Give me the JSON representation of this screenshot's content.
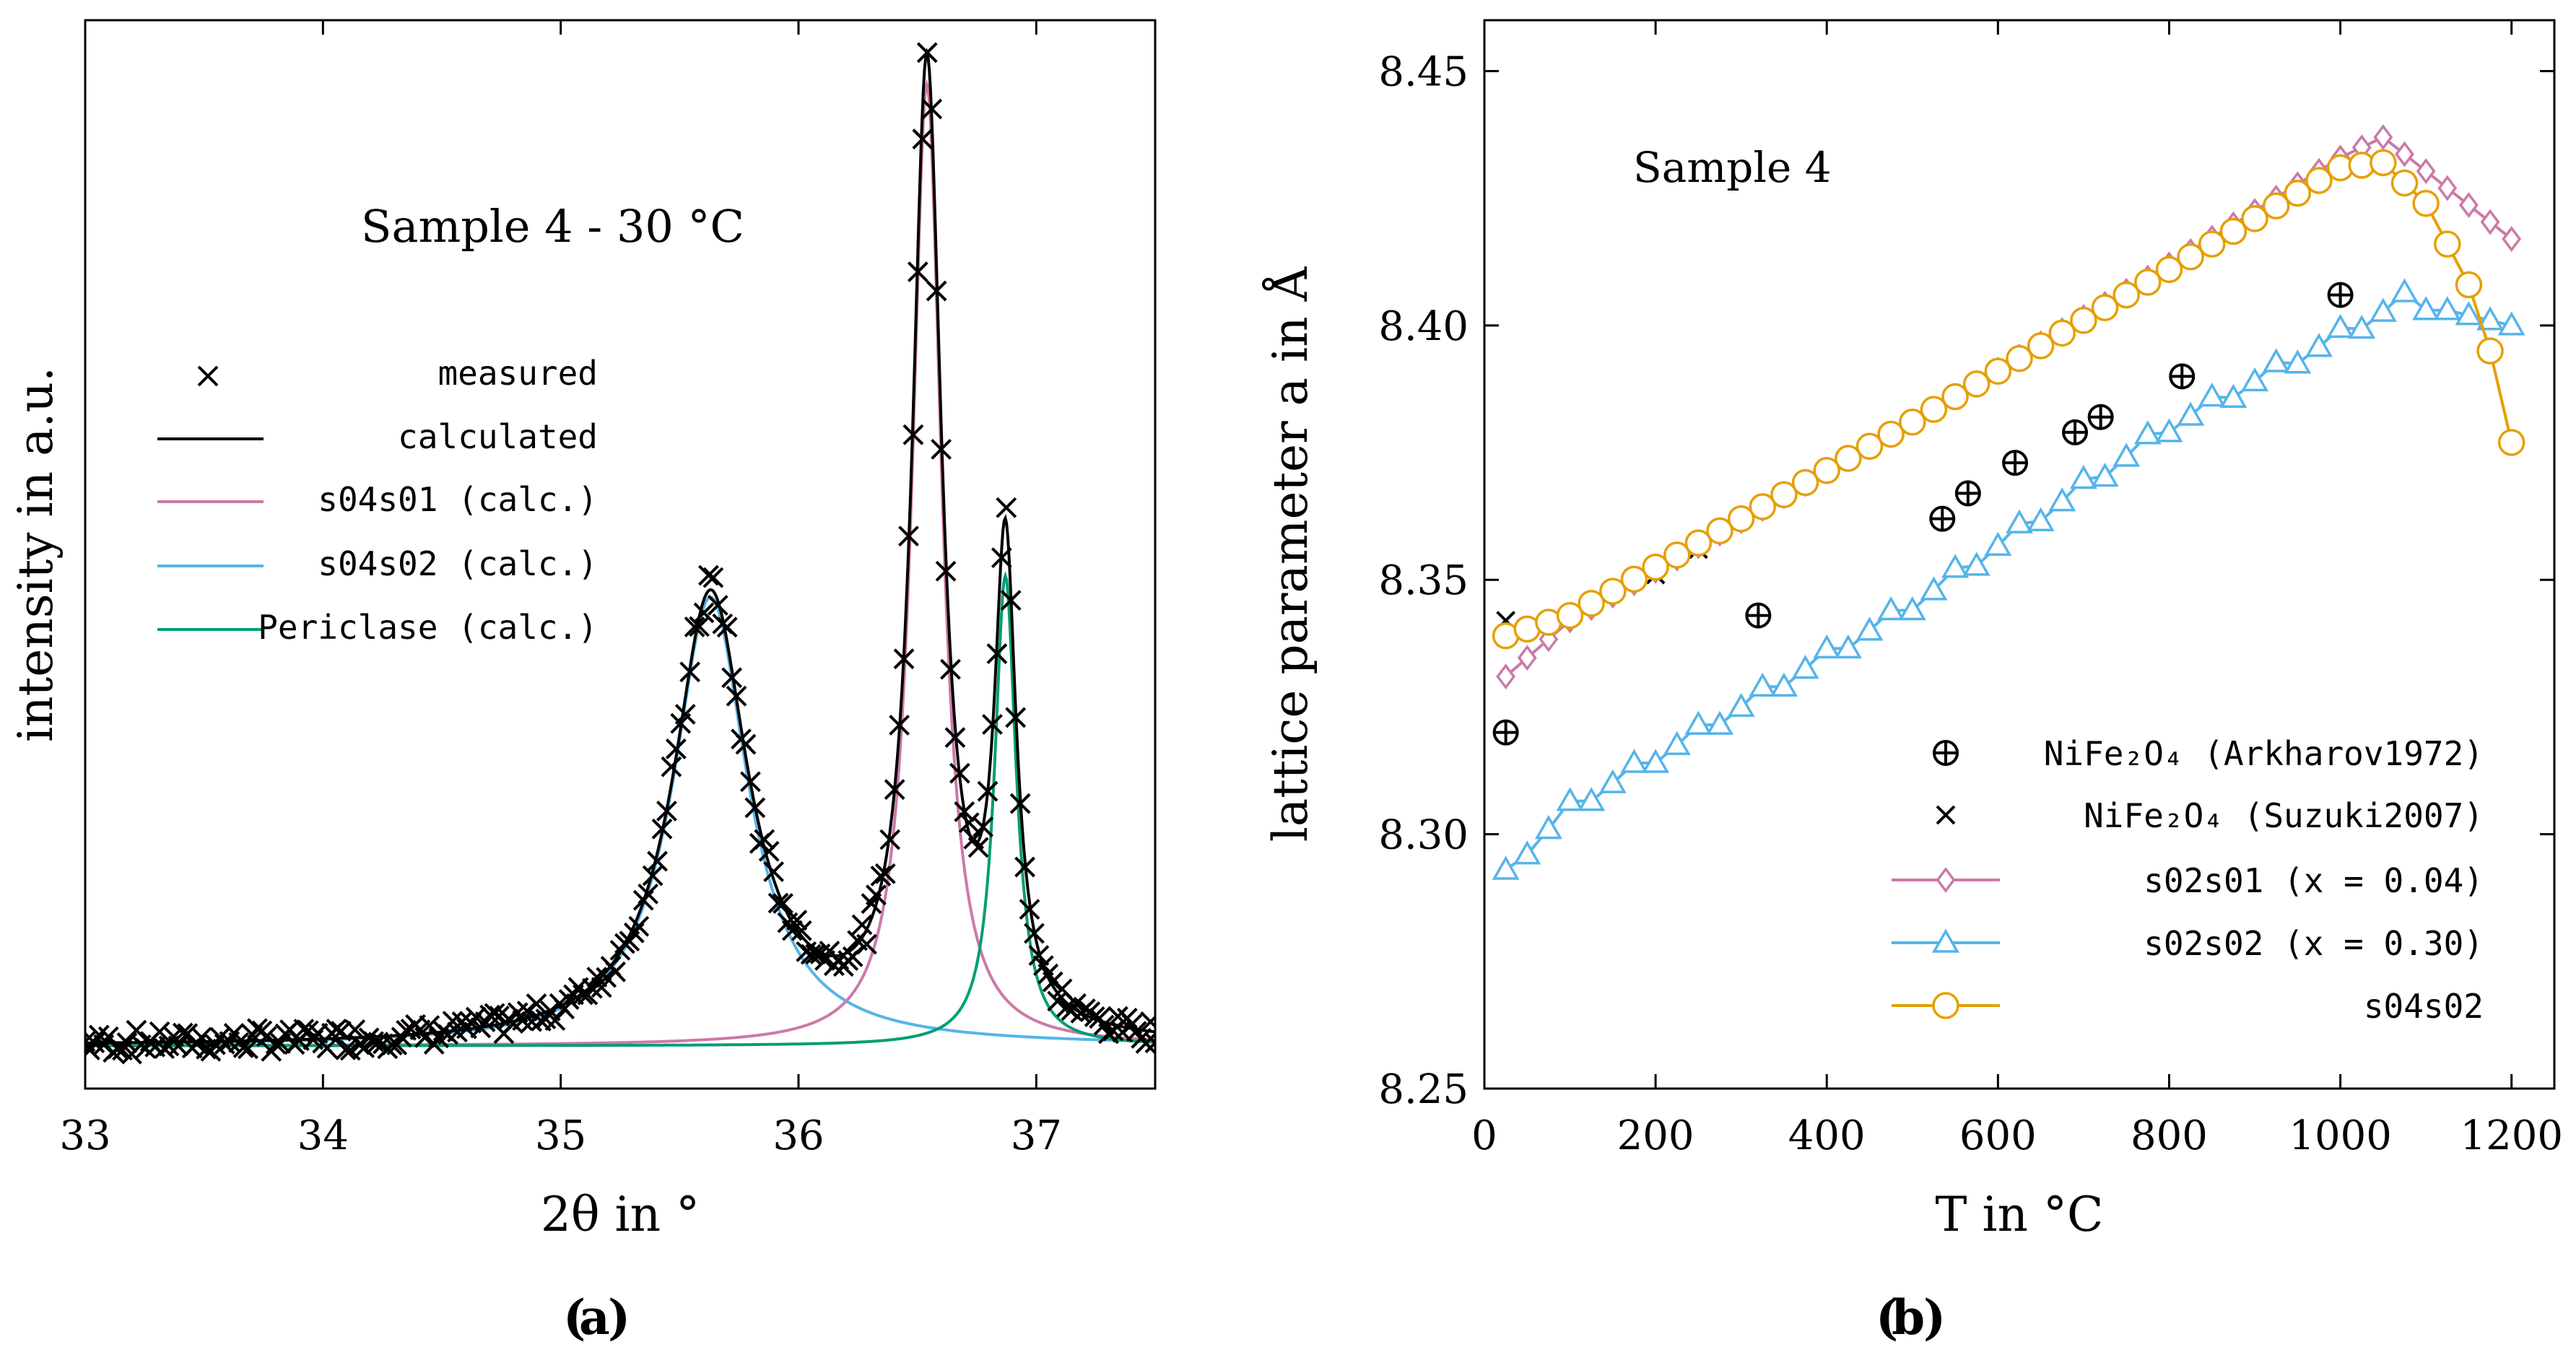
{
  "chart_data": [
    {
      "type": "line",
      "panel": "(a)",
      "annotation": "Sample 4 - 30 °C",
      "xlabel": "2θ in °",
      "ylabel": "intensity in a.u.",
      "xlim": [
        33,
        37.5
      ],
      "ylim": [
        0,
        1.0
      ],
      "xticks": [
        "33",
        "34",
        "35",
        "36",
        "37"
      ],
      "legend_position": "center-left",
      "legend": [
        "measured",
        "calculated",
        "s04s01 (calc.)",
        "s04s02 (calc.)",
        "Periclase (calc.)"
      ],
      "colors": {
        "measured": "#000000",
        "calculated": "#000000",
        "s04s01": "#cc79a7",
        "s04s02": "#56b4e9",
        "periclase": "#009e73"
      },
      "baseline": 0.04,
      "peaks": [
        {
          "name": "s04s02 (calc.)",
          "center": 35.63,
          "height": 0.42,
          "hwhm": 0.19
        },
        {
          "name": "s04s01 (calc.)",
          "center": 36.54,
          "height": 0.9,
          "hwhm": 0.075
        },
        {
          "name": "Periclase (calc.)",
          "center": 36.87,
          "height": 0.44,
          "hwhm": 0.055
        }
      ]
    },
    {
      "type": "line",
      "panel": "(b)",
      "annotation": "Sample 4",
      "xlabel": "T in °C",
      "ylabel": "lattice parameter a in Å",
      "xlim": [
        0,
        1250
      ],
      "ylim": [
        8.25,
        8.46
      ],
      "xticks": [
        "0",
        "200",
        "400",
        "600",
        "800",
        "1000",
        "1200"
      ],
      "yticks": [
        "8.25",
        "8.30",
        "8.35",
        "8.40",
        "8.45"
      ],
      "legend_position": "bottom-right",
      "series": [
        {
          "name": "NiFe₂O₄ (Arkharov1972)",
          "marker": "circle-plus",
          "color": "#000000",
          "x": [
            25,
            320,
            535,
            565,
            620,
            690,
            720,
            815,
            1000
          ],
          "y": [
            8.32,
            8.343,
            8.362,
            8.367,
            8.373,
            8.379,
            8.382,
            8.39,
            8.406
          ]
        },
        {
          "name": "NiFe₂O₄ (Suzuki2007)",
          "marker": "x",
          "color": "#000000",
          "x": [
            25,
            150,
            200,
            250,
            300
          ],
          "y": [
            8.342,
            8.348,
            8.351,
            8.356,
            8.362
          ]
        },
        {
          "name": "s02s01 (x = 0.04)",
          "marker": "diamond",
          "color": "#cc79a7",
          "start": [
            25,
            8.331
          ],
          "points": [
            [
              100,
              8.342
            ],
            [
              500,
              8.381
            ],
            [
              800,
              8.412
            ],
            [
              1000,
              8.433
            ],
            [
              1050,
              8.437
            ],
            [
              1200,
              8.417
            ]
          ]
        },
        {
          "name": "s02s02 (x = 0.30)",
          "marker": "triangle",
          "color": "#56b4e9",
          "start": [
            25,
            8.293
          ],
          "points": [
            [
              100,
              8.305
            ],
            [
              500,
              8.345
            ],
            [
              800,
              8.38
            ],
            [
              1000,
              8.398
            ],
            [
              1075,
              8.405
            ],
            [
              1200,
              8.4
            ]
          ]
        },
        {
          "name": "s04s02",
          "marker": "circle",
          "color": "#e69f00",
          "start": [
            25,
            8.339
          ],
          "points": [
            [
              100,
              8.343
            ],
            [
              500,
              8.381
            ],
            [
              800,
              8.411
            ],
            [
              1000,
              8.431
            ],
            [
              1050,
              8.432
            ],
            [
              1100,
              8.424
            ],
            [
              1150,
              8.408
            ],
            [
              1175,
              8.395
            ],
            [
              1200,
              8.377
            ]
          ]
        }
      ]
    }
  ],
  "captions": {
    "a": "a",
    "b": "b"
  }
}
